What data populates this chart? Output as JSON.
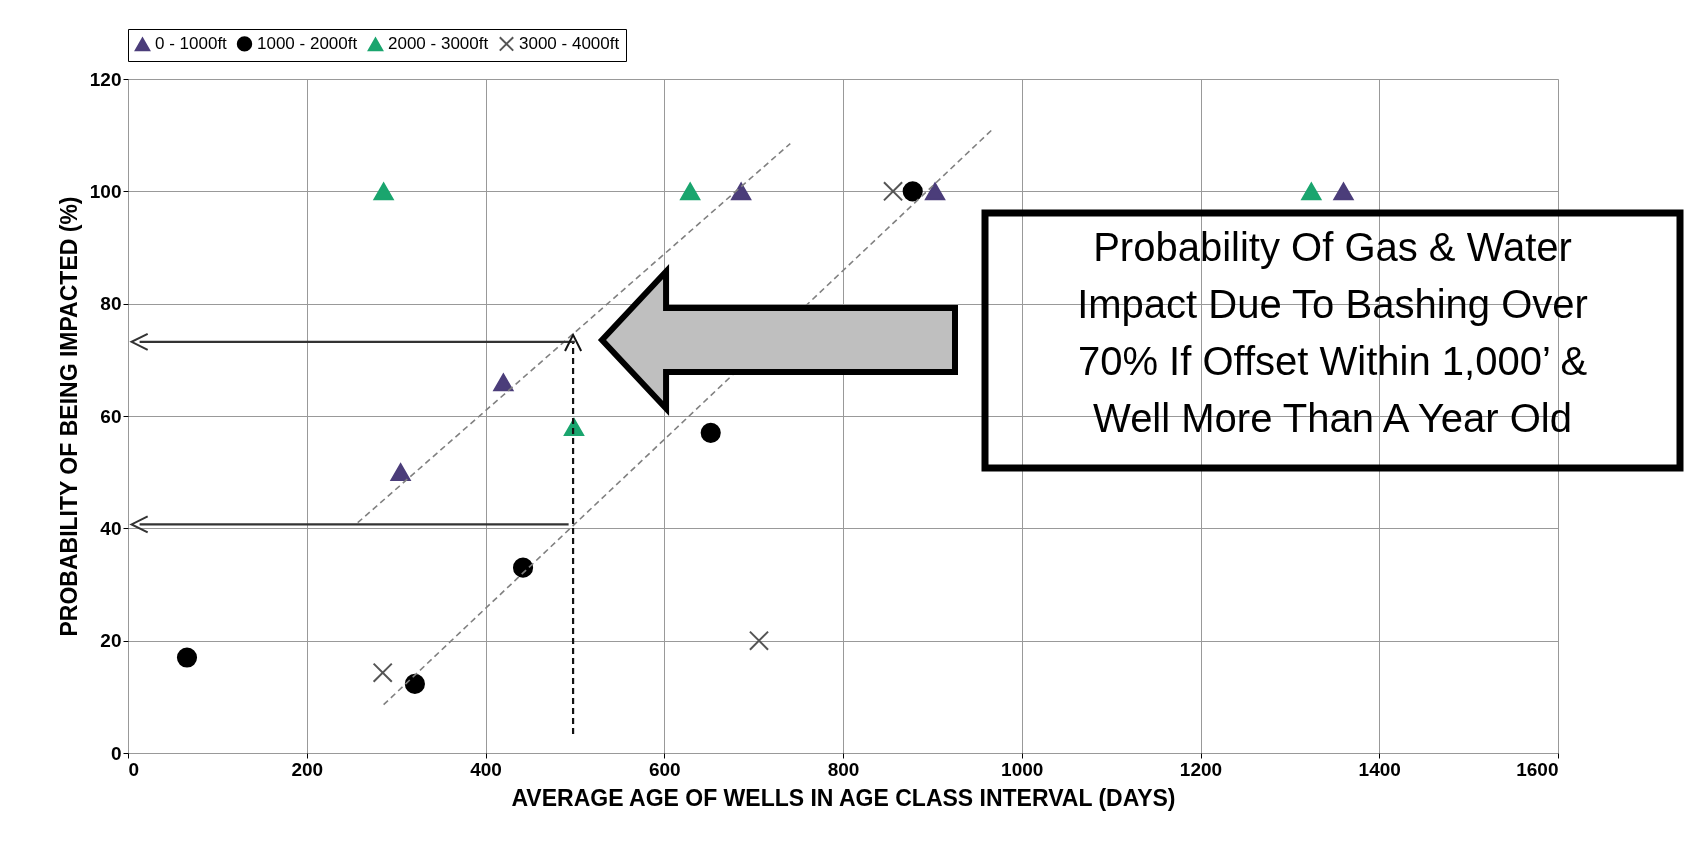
{
  "chart_data": {
    "type": "scatter",
    "xlabel": "AVERAGE AGE OF WELLS IN AGE CLASS INTERVAL (DAYS)",
    "ylabel": "PROBABILITY OF BEING IMPACTED (%)",
    "xlim": [
      0,
      1600
    ],
    "xticks": [
      0,
      200,
      400,
      600,
      800,
      1000,
      1200,
      1400,
      1600
    ],
    "ylim": [
      0,
      120
    ],
    "yticks": [
      0,
      20,
      40,
      60,
      80,
      100,
      120
    ],
    "grid": true,
    "legend": "top",
    "annotations": [
      "Probability Of Gas & Water\nImpact Due To Bashing Over\n70% If Offset Within 1,000’ &\nWell More Than A Year Old"
    ],
    "series": [
      {
        "name": "0 - 1000ft",
        "color": "#4b3d7a",
        "marker": "triangle",
        "x": [
          305,
          420,
          686,
          903,
          1360
        ],
        "values": [
          50,
          66,
          100,
          100,
          100
        ]
      },
      {
        "name": "1000 - 2000ft",
        "color": "#000000",
        "marker": "circle",
        "x": [
          66,
          321,
          442,
          652,
          878
        ],
        "values": [
          17,
          12.3,
          33,
          57,
          100
        ]
      },
      {
        "name": "2000 - 3000ft",
        "color": "#1aa56e",
        "marker": "triangle",
        "x": [
          286,
          499,
          629,
          1324
        ],
        "values": [
          100,
          58,
          100,
          100
        ]
      },
      {
        "name": "3000 - 4000ft",
        "color": "#555555",
        "marker": "cross",
        "x": [
          285,
          706,
          856
        ],
        "values": [
          14.3,
          20,
          100
        ]
      },
      {
        "type": "line",
        "color": "#808080",
        "marker": "none",
        "line_style": "dashed",
        "x": [
          257,
          741
        ],
        "values": [
          41,
          108.5
        ]
      },
      {
        "type": "line",
        "color": "#808080",
        "marker": "none",
        "line_style": "dashed",
        "x": [
          286,
          967
        ],
        "values": [
          8.6,
          111
        ]
      },
      {
        "type": "line",
        "color": "#333333",
        "x": [
          500,
          13
        ],
        "values": [
          73.2,
          73.2
        ]
      },
      {
        "type": "line",
        "color": "#333333",
        "x": [
          493,
          13
        ],
        "values": [
          40.7,
          40.7
        ]
      },
      {
        "type": "line",
        "color": "#111111",
        "line_style": "dashed",
        "x": [
          498,
          498
        ],
        "values": [
          3.4,
          73
        ]
      }
    ]
  }
}
